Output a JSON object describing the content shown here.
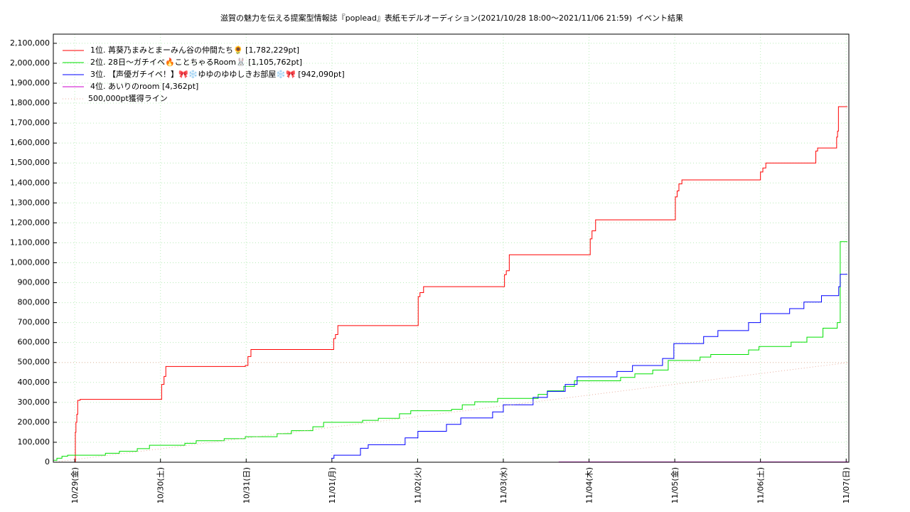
{
  "chart_data": {
    "type": "line",
    "title": "滋賀の魅力を伝える提案型情報誌『poplead』表紙モデルオーディション(2021/10/28 18:00～2021/11/06 21:59)",
    "subtitle": "イベント結果",
    "line_style": "steps",
    "grid": true,
    "legend": "top-left",
    "xlim": [
      "10/28 18:00",
      "11/07 00:45"
    ],
    "xticks": [
      {
        "value": "10/29 00:00",
        "label": "10/29(金)"
      },
      {
        "value": "10/30 00:00",
        "label": "10/30(土)"
      },
      {
        "value": "10/31 00:00",
        "label": "10/31(日)"
      },
      {
        "value": "11/01 00:00",
        "label": "11/01(月)"
      },
      {
        "value": "11/02 00:00",
        "label": "11/02(火)"
      },
      {
        "value": "11/03 00:00",
        "label": "11/03(水)"
      },
      {
        "value": "11/04 00:00",
        "label": "11/04(木)"
      },
      {
        "value": "11/05 00:00",
        "label": "11/05(金)"
      },
      {
        "value": "11/06 00:00",
        "label": "11/06(土)"
      },
      {
        "value": "11/07 00:00",
        "label": "11/07(日)"
      }
    ],
    "ylim": [
      0,
      2146000
    ],
    "yticks": [
      0,
      {
        "value": 100000,
        "label": "100,000"
      },
      {
        "value": 200000,
        "label": "200,000"
      },
      {
        "value": 300000,
        "label": "300,000"
      },
      {
        "value": 400000,
        "label": "400,000"
      },
      {
        "value": 500000,
        "label": "500,000"
      },
      {
        "value": 600000,
        "label": "600,000"
      },
      {
        "value": 700000,
        "label": "700,000"
      },
      {
        "value": 800000,
        "label": "800,000"
      },
      {
        "value": 900000,
        "label": "900,000"
      },
      {
        "value": 1000000,
        "label": "1,000,000"
      },
      {
        "value": 1100000,
        "label": "1,100,000"
      },
      {
        "value": 1200000,
        "label": "1,200,000"
      },
      {
        "value": 1300000,
        "label": "1,300,000"
      },
      {
        "value": 1400000,
        "label": "1,400,000"
      },
      {
        "value": 1500000,
        "label": "1,500,000"
      },
      {
        "value": 1600000,
        "label": "1,600,000"
      },
      {
        "value": 1700000,
        "label": "1,700,000"
      },
      {
        "value": 1800000,
        "label": "1,800,000"
      },
      {
        "value": 1900000,
        "label": "1,900,000"
      },
      {
        "value": 2000000,
        "label": "2,000,000"
      },
      {
        "value": 2100000,
        "label": "2,100,000"
      }
    ],
    "reference_line": {
      "value": 500000,
      "color": "#e8b8a8"
    },
    "series": [
      {
        "name": "1位. 苒葵乃まみとまーみん谷の仲間たち🌻 [1,782,229pt]",
        "color": "#ff0000",
        "x": [
          "10/28 23:50",
          "10/29 00:10",
          "10/29 00:20",
          "10/29 00:35",
          "10/29 00:50",
          "10/29 01:30",
          "10/30 00:05",
          "10/30 00:20",
          "10/30 01:00",
          "10/30 01:30",
          "10/30 23:45",
          "10/31 00:30",
          "10/31 01:20",
          "10/31 23:50",
          "11/01 00:30",
          "11/01 01:00",
          "11/01 01:40",
          "11/01 23:55",
          "11/02 00:10",
          "11/02 00:40",
          "11/02 01:40",
          "11/02 23:50",
          "11/03 00:20",
          "11/03 00:50",
          "11/03 01:40",
          "11/03 23:55",
          "11/04 00:20",
          "11/04 00:50",
          "11/04 01:50",
          "11/04 23:35",
          "11/05 00:10",
          "11/05 00:40",
          "11/05 01:10",
          "11/05 02:00",
          "11/05 23:25",
          "11/06 00:00",
          "11/06 00:40",
          "11/06 01:30",
          "11/06 14:50",
          "11/06 15:30",
          "11/06 16:00",
          "11/06 21:10",
          "11/06 21:20",
          "11/06 21:35",
          "11/06 21:50",
          "11/07 00:20"
        ],
        "values": [
          0,
          150000,
          200000,
          240000,
          310000,
          315000,
          315000,
          390000,
          430000,
          480000,
          485000,
          530000,
          565000,
          565000,
          620000,
          640000,
          685000,
          685000,
          830000,
          850000,
          880000,
          880000,
          940000,
          960000,
          1040000,
          1040000,
          1120000,
          1160000,
          1215000,
          1215000,
          1330000,
          1360000,
          1395000,
          1415000,
          1415000,
          1455000,
          1475000,
          1500000,
          1500000,
          1560000,
          1575000,
          1575000,
          1630000,
          1660000,
          1782229,
          1782229
        ]
      },
      {
        "name": "2位. 28日〜ガチイベ🔥ことちゃるRoom🐰 [1,105,762pt]",
        "color": "#00e000",
        "x": [
          "10/28 18:00",
          "10/28 19:00",
          "10/28 20:25",
          "10/28 22:00",
          "10/29 08:35",
          "10/29 12:30",
          "10/29 17:30",
          "10/29 20:55",
          "10/30 06:50",
          "10/30 10:00",
          "10/30 17:50",
          "10/30 23:45",
          "10/31 08:40",
          "10/31 12:40",
          "10/31 18:40",
          "10/31 21:40",
          "11/01 08:35",
          "11/01 13:00",
          "11/01 18:55",
          "11/01 22:05",
          "11/02 09:30",
          "11/02 12:30",
          "11/02 16:00",
          "11/02 22:25",
          "11/03 09:45",
          "11/03 12:20",
          "11/03 16:55",
          "11/03 19:55",
          "11/04 08:50",
          "11/04 12:50",
          "11/04 17:50",
          "11/04 22:10",
          "11/05 07:05",
          "11/05 10:05",
          "11/05 20:40",
          "11/05 23:35",
          "11/06 08:35",
          "11/06 13:00",
          "11/06 17:30",
          "11/06 21:30",
          "11/06 22:20",
          "11/07 00:20"
        ],
        "values": [
          10000,
          20000,
          30000,
          35000,
          45000,
          55000,
          68000,
          85000,
          95000,
          108000,
          118000,
          128000,
          143000,
          158000,
          178000,
          200000,
          210000,
          220000,
          243000,
          258000,
          265000,
          288000,
          303000,
          320000,
          340000,
          358000,
          380000,
          408000,
          425000,
          443000,
          462000,
          510000,
          527000,
          540000,
          563000,
          580000,
          602000,
          627000,
          672000,
          700000,
          1105762,
          1105762
        ]
      },
      {
        "name": "3位. 【声優ガチイベ！】🎀❄️ゆゆのゆゆしきお部屋❄️🎀 [942,090pt]",
        "color": "#0000ff",
        "x": [
          "10/31 23:50",
          "11/01 00:35",
          "11/01 08:00",
          "11/01 10:10",
          "11/01 20:30",
          "11/02 00:05",
          "11/02 08:05",
          "11/02 12:05",
          "11/02 21:00",
          "11/03 00:00",
          "11/03 08:20",
          "11/03 12:20",
          "11/03 17:20",
          "11/03 20:40",
          "11/04 07:50",
          "11/04 12:10",
          "11/04 20:35",
          "11/04 23:45",
          "11/05 08:05",
          "11/05 12:05",
          "11/05 20:40",
          "11/06 00:00",
          "11/06 08:10",
          "11/06 12:10",
          "11/06 17:05",
          "11/06 21:55",
          "11/06 22:20",
          "11/07 00:20"
        ],
        "values": [
          20000,
          35000,
          70000,
          88000,
          122000,
          155000,
          190000,
          222000,
          252000,
          288000,
          325000,
          355000,
          390000,
          428000,
          455000,
          485000,
          520000,
          595000,
          630000,
          660000,
          700000,
          745000,
          770000,
          803000,
          835000,
          880000,
          942090,
          942090
        ]
      },
      {
        "name": "4位. あいりのroom [4,362pt]",
        "color": "#cc00cc",
        "x": [
          "11/03 15:30",
          "11/07 00:20"
        ],
        "values": [
          1500,
          4362
        ]
      },
      {
        "name": "500,000pt獲得ライン",
        "color": "#e8b0a0",
        "dash": true,
        "x": [
          "10/28 18:00",
          "11/07 00:45"
        ],
        "values": [
          0,
          500000
        ]
      }
    ]
  }
}
